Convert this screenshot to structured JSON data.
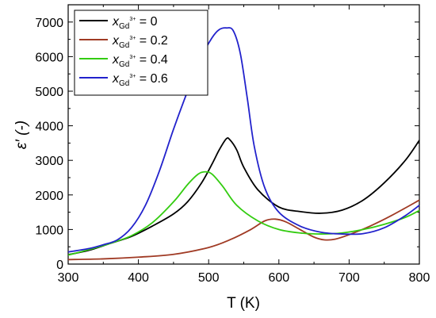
{
  "chart_data": {
    "type": "line",
    "xlabel": "T (K)",
    "ylabel": "ε′ (-)",
    "xlim": [
      300,
      800
    ],
    "ylim": [
      0,
      7500
    ],
    "xticks": [
      300,
      400,
      500,
      600,
      700,
      800
    ],
    "yticks": [
      0,
      1000,
      2000,
      3000,
      4000,
      5000,
      6000,
      7000
    ],
    "grid": false,
    "legend_position": "top-left",
    "series": [
      {
        "name": "x",
        "subscript": "Gd",
        "superscript": "3+",
        "value_text": " = 0",
        "color": "#000000",
        "x": [
          300,
          330,
          360,
          390,
          420,
          450,
          470,
          490,
          505,
          515,
          525,
          530,
          540,
          550,
          570,
          600,
          630,
          660,
          690,
          720,
          750,
          780,
          800
        ],
        "y": [
          270,
          400,
          600,
          800,
          1100,
          1450,
          1800,
          2350,
          2900,
          3300,
          3620,
          3600,
          3300,
          2800,
          2150,
          1650,
          1520,
          1470,
          1560,
          1850,
          2350,
          3000,
          3580
        ]
      },
      {
        "name": "x",
        "subscript": "Gd",
        "superscript": "3+",
        "value_text": " = 0.2",
        "color": "#a03a24",
        "x": [
          300,
          350,
          400,
          450,
          500,
          530,
          560,
          580,
          595,
          610,
          630,
          650,
          665,
          680,
          700,
          730,
          760,
          800
        ],
        "y": [
          130,
          150,
          200,
          280,
          480,
          700,
          1000,
          1250,
          1300,
          1220,
          1000,
          780,
          700,
          720,
          850,
          1100,
          1400,
          1850
        ]
      },
      {
        "name": "x",
        "subscript": "Gd",
        "superscript": "3+",
        "value_text": " = 0.4",
        "color": "#33cc10",
        "x": [
          300,
          330,
          360,
          390,
          420,
          450,
          470,
          485,
          495,
          505,
          520,
          540,
          570,
          600,
          630,
          660,
          690,
          720,
          750,
          780,
          800
        ],
        "y": [
          260,
          420,
          600,
          820,
          1200,
          1800,
          2300,
          2600,
          2670,
          2600,
          2250,
          1700,
          1250,
          1000,
          900,
          870,
          900,
          1000,
          1150,
          1350,
          1550
        ]
      },
      {
        "name": "x",
        "subscript": "Gd",
        "superscript": "3+",
        "value_text": " = 0.6",
        "color": "#2222cc",
        "x": [
          300,
          330,
          350,
          370,
          390,
          410,
          430,
          450,
          470,
          490,
          505,
          515,
          525,
          535,
          545,
          555,
          565,
          580,
          600,
          630,
          660,
          690,
          720,
          750,
          780,
          800
        ],
        "y": [
          350,
          450,
          560,
          700,
          1050,
          1700,
          2700,
          3900,
          5000,
          6000,
          6550,
          6780,
          6830,
          6750,
          6100,
          4800,
          3400,
          2200,
          1500,
          1100,
          920,
          870,
          880,
          1050,
          1400,
          1700
        ]
      }
    ]
  }
}
